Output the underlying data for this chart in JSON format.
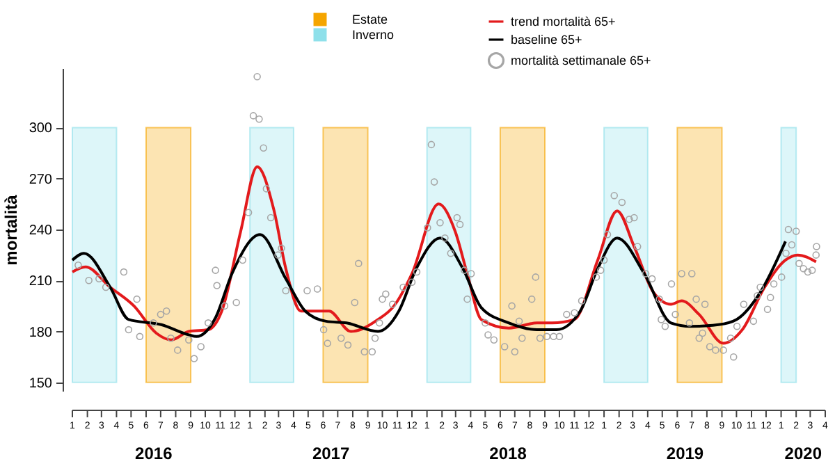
{
  "chart_data": {
    "type": "line",
    "ylabel": "mortalità",
    "legend": "top",
    "xlim": [
      "2016-01-01",
      "2020-04-01"
    ],
    "ylim": [
      145,
      335
    ],
    "yticks": [
      150,
      180,
      210,
      240,
      270,
      300
    ],
    "xticks": [
      {
        "value": "2016-01",
        "label": "1"
      },
      {
        "value": "2016-02",
        "label": "2"
      },
      {
        "value": "2016-03",
        "label": "3"
      },
      {
        "value": "2016-04",
        "label": "4"
      },
      {
        "value": "2016-05",
        "label": "5"
      },
      {
        "value": "2016-06",
        "label": "6"
      },
      {
        "value": "2016-07",
        "label": "7"
      },
      {
        "value": "2016-08",
        "label": "8"
      },
      {
        "value": "2016-09",
        "label": "9"
      },
      {
        "value": "2016-10",
        "label": "10"
      },
      {
        "value": "2016-11",
        "label": "11"
      },
      {
        "value": "2016-12",
        "label": "12"
      },
      {
        "value": "2017-01",
        "label": "1"
      },
      {
        "value": "2017-02",
        "label": "2"
      },
      {
        "value": "2017-03",
        "label": "3"
      },
      {
        "value": "2017-04",
        "label": "4"
      },
      {
        "value": "2017-05",
        "label": "5"
      },
      {
        "value": "2017-06",
        "label": "6"
      },
      {
        "value": "2017-07",
        "label": "7"
      },
      {
        "value": "2017-08",
        "label": "8"
      },
      {
        "value": "2017-09",
        "label": "9"
      },
      {
        "value": "2017-10",
        "label": "10"
      },
      {
        "value": "2017-11",
        "label": "11"
      },
      {
        "value": "2017-12",
        "label": "12"
      },
      {
        "value": "2018-01",
        "label": "1"
      },
      {
        "value": "2018-02",
        "label": "2"
      },
      {
        "value": "2018-03",
        "label": "3"
      },
      {
        "value": "2018-04",
        "label": "4"
      },
      {
        "value": "2018-05",
        "label": "5"
      },
      {
        "value": "2018-06",
        "label": "6"
      },
      {
        "value": "2018-07",
        "label": "7"
      },
      {
        "value": "2018-08",
        "label": "8"
      },
      {
        "value": "2018-09",
        "label": "9"
      },
      {
        "value": "2018-10",
        "label": "10"
      },
      {
        "value": "2018-11",
        "label": "11"
      },
      {
        "value": "2018-12",
        "label": "12"
      },
      {
        "value": "2019-01",
        "label": "1"
      },
      {
        "value": "2019-02",
        "label": "2"
      },
      {
        "value": "2019-03",
        "label": "3"
      },
      {
        "value": "2019-04",
        "label": "4"
      },
      {
        "value": "2019-05",
        "label": "5"
      },
      {
        "value": "2019-06",
        "label": "6"
      },
      {
        "value": "2019-07",
        "label": "7"
      },
      {
        "value": "2019-08",
        "label": "8"
      },
      {
        "value": "2019-09",
        "label": "9"
      },
      {
        "value": "2019-10",
        "label": "10"
      },
      {
        "value": "2019-11",
        "label": "11"
      },
      {
        "value": "2019-12",
        "label": "12"
      },
      {
        "value": "2020-01",
        "label": "1"
      },
      {
        "value": "2020-02",
        "label": "2"
      },
      {
        "value": "2020-03",
        "label": "3"
      },
      {
        "value": "2020-04",
        "label": "4"
      }
    ],
    "annotations": [
      "2016",
      "2017",
      "2018",
      "2019",
      "2020"
    ],
    "bands": [
      {
        "axis": "x",
        "from": "2016-06-01",
        "to": "2016-09-01",
        "label": "Estate",
        "color": "#f5a500"
      },
      {
        "axis": "x",
        "from": "2017-06-01",
        "to": "2017-09-01",
        "color": "#f5a500"
      },
      {
        "axis": "x",
        "from": "2018-06-01",
        "to": "2018-09-01",
        "color": "#f5a500"
      },
      {
        "axis": "x",
        "from": "2019-06-01",
        "to": "2019-09-01",
        "color": "#f5a500"
      },
      {
        "axis": "x",
        "from": "2016-01-01",
        "to": "2016-04-01",
        "label": "Inverno",
        "color": "#8ee0ea"
      },
      {
        "axis": "x",
        "from": "2017-01-01",
        "to": "2017-04-01",
        "color": "#8ee0ea"
      },
      {
        "axis": "x",
        "from": "2018-01-01",
        "to": "2018-04-01",
        "color": "#8ee0ea"
      },
      {
        "axis": "x",
        "from": "2019-01-01",
        "to": "2019-04-01",
        "color": "#8ee0ea"
      },
      {
        "axis": "x",
        "from": "2020-01-01",
        "to": "2020-02-01",
        "color": "#8ee0ea"
      }
    ],
    "series": [
      {
        "name": "trend mortalità 65+",
        "color": "#e31a1c",
        "x": [
          "2016-01-01",
          "2016-01-28",
          "2016-03-19",
          "2016-05-07",
          "2016-06-22",
          "2016-07-23",
          "2016-08-28",
          "2016-10-07",
          "2016-11-04",
          "2016-12-13",
          "2017-01-16",
          "2017-02-19",
          "2017-03-16",
          "2017-04-16",
          "2017-05-28",
          "2017-06-13",
          "2017-07-28",
          "2017-09-22",
          "2017-10-25",
          "2017-12-01",
          "2018-01-25",
          "2018-02-28",
          "2018-03-25",
          "2018-04-23",
          "2018-06-19",
          "2018-08-16",
          "2018-09-16",
          "2018-11-01",
          "2018-12-19",
          "2019-01-28",
          "2019-03-04",
          "2019-04-13",
          "2019-05-19",
          "2019-06-10",
          "2019-07-16",
          "2019-09-04",
          "2019-10-13",
          "2019-11-28",
          "2020-01-10",
          "2020-02-04",
          "2020-03-13"
        ],
        "values": [
          215,
          218,
          206,
          195,
          179,
          175,
          180,
          181,
          192,
          239,
          277,
          252,
          217,
          192,
          192,
          192,
          180,
          187,
          195,
          214,
          255,
          239,
          214,
          187,
          182,
          185,
          185,
          187,
          222,
          251,
          230,
          203,
          196,
          198,
          190,
          173,
          181,
          206,
          222,
          225,
          221
        ]
      },
      {
        "name": "baseline 65+",
        "color": "#000000",
        "x": [
          "2016-01-01",
          "2016-01-25",
          "2016-03-19",
          "2016-04-26",
          "2016-07-02",
          "2016-08-28",
          "2016-09-13",
          "2016-10-22",
          "2016-11-25",
          "2017-01-22",
          "2017-03-16",
          "2017-04-25",
          "2017-06-07",
          "2017-07-19",
          "2017-09-22",
          "2017-11-04",
          "2017-12-10",
          "2018-01-28",
          "2018-03-16",
          "2018-04-23",
          "2018-06-19",
          "2018-08-16",
          "2018-09-25",
          "2018-11-13",
          "2018-12-19",
          "2019-01-28",
          "2019-03-25",
          "2019-05-19",
          "2019-06-28",
          "2019-08-25",
          "2019-10-01",
          "2019-11-19",
          "2020-01-10"
        ],
        "values": [
          222,
          226,
          206,
          187,
          184,
          178,
          177,
          188,
          214,
          237,
          211,
          192,
          186,
          185,
          180,
          192,
          217,
          235,
          217,
          194,
          185,
          181,
          181,
          192,
          217,
          235,
          214,
          185,
          183,
          184,
          187,
          203,
          233
        ]
      },
      {
        "name": "mortalità settimanale 65+",
        "type": "scatter",
        "marker": "circle",
        "color": "#a6a6a6",
        "x": [
          "2016-01-13",
          "2016-02-04",
          "2016-02-25",
          "2016-03-10",
          "2016-04-16",
          "2016-04-26",
          "2016-05-13",
          "2016-05-19",
          "2016-06-16",
          "2016-07-01",
          "2016-07-13",
          "2016-07-22",
          "2016-08-05",
          "2016-08-28",
          "2016-09-08",
          "2016-09-22",
          "2016-10-07",
          "2016-10-22",
          "2016-10-25",
          "2016-11-10",
          "2016-12-04",
          "2016-12-17",
          "2016-12-29",
          "2017-01-08",
          "2017-01-16",
          "2017-01-20",
          "2017-01-29",
          "2017-02-04",
          "2017-02-13",
          "2017-02-28",
          "2017-03-07",
          "2017-03-16",
          "2017-04-29",
          "2017-05-20",
          "2017-06-02",
          "2017-06-10",
          "2017-07-08",
          "2017-07-22",
          "2017-08-05",
          "2017-08-13",
          "2017-08-25",
          "2017-09-10",
          "2017-09-16",
          "2017-09-25",
          "2017-10-01",
          "2017-10-08",
          "2017-10-22",
          "2017-11-13",
          "2017-12-01",
          "2017-12-11",
          "2018-01-02",
          "2018-01-10",
          "2018-01-16",
          "2018-01-28",
          "2018-02-07",
          "2018-02-19",
          "2018-03-04",
          "2018-03-10",
          "2018-03-19",
          "2018-03-25",
          "2018-04-02",
          "2018-05-01",
          "2018-05-07",
          "2018-05-19",
          "2018-06-10",
          "2018-06-25",
          "2018-07-01",
          "2018-07-10",
          "2018-07-16",
          "2018-08-05",
          "2018-08-13",
          "2018-08-22",
          "2018-09-05",
          "2018-09-19",
          "2018-10-01",
          "2018-10-16",
          "2018-11-01",
          "2018-11-16",
          "2018-12-16",
          "2018-12-25",
          "2019-01-01",
          "2019-01-08",
          "2019-01-22",
          "2019-02-07",
          "2019-02-22",
          "2019-03-04",
          "2019-03-11",
          "2019-03-28",
          "2019-04-10",
          "2019-04-25",
          "2019-04-29",
          "2019-05-07",
          "2019-05-20",
          "2019-05-28",
          "2019-06-10",
          "2019-06-26",
          "2019-07-01",
          "2019-07-10",
          "2019-07-16",
          "2019-07-23",
          "2019-07-28",
          "2019-08-07",
          "2019-08-19",
          "2019-09-04",
          "2019-09-19",
          "2019-09-25",
          "2019-10-02",
          "2019-10-16",
          "2019-11-05",
          "2019-11-13",
          "2019-11-19",
          "2019-12-04",
          "2019-12-10",
          "2019-12-17",
          "2020-01-02",
          "2020-01-11",
          "2020-01-16",
          "2020-01-23",
          "2020-02-01",
          "2020-02-07",
          "2020-02-16",
          "2020-02-25",
          "2020-03-05",
          "2020-03-13",
          "2020-03-14"
        ],
        "values": [
          219,
          210,
          211,
          206,
          215,
          181,
          199,
          177,
          185,
          190,
          192,
          176,
          169,
          175,
          164,
          171,
          185,
          216,
          207,
          195,
          197,
          222,
          250,
          307,
          330,
          305,
          288,
          264,
          247,
          225,
          229,
          204,
          204,
          205,
          181,
          173,
          176,
          172,
          197,
          220,
          168,
          168,
          176,
          185,
          199,
          202,
          196,
          206,
          209,
          215,
          241,
          290,
          268,
          244,
          235,
          226,
          247,
          243,
          216,
          199,
          214,
          185,
          178,
          175,
          171,
          195,
          168,
          186,
          176,
          199,
          212,
          176,
          177,
          177,
          177,
          190,
          191,
          198,
          212,
          216,
          222,
          237,
          260,
          256,
          246,
          247,
          230,
          214,
          211,
          199,
          187,
          183,
          208,
          190,
          214,
          185,
          214,
          199,
          176,
          179,
          196,
          171,
          169,
          169,
          176,
          165,
          183,
          196,
          186,
          201,
          206,
          193,
          200,
          208,
          212,
          226,
          240,
          231,
          239,
          220,
          217,
          215,
          216,
          225,
          230
        ]
      }
    ]
  }
}
